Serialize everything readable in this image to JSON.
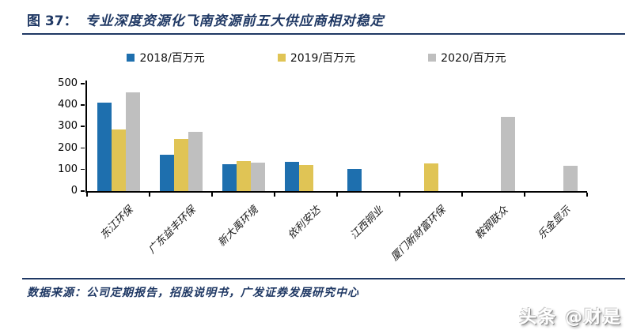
{
  "header": {
    "figure_label": "图 37：",
    "title": "专业深度资源化飞南资源前五大供应商相对稳定"
  },
  "chart_data": {
    "type": "bar",
    "title": "专业深度资源化飞南资源前五大供应商相对稳定",
    "categories": [
      "东江环保",
      "广东益丰环保",
      "新大禹环境",
      "依利安达",
      "江西铜业",
      "厦门新财富环保",
      "鞍钢联众",
      "乐金显示"
    ],
    "series": [
      {
        "name": "2018/百万元",
        "color": "#1e6fae",
        "values": [
          412,
          170,
          125,
          137,
          102,
          null,
          null,
          null
        ]
      },
      {
        "name": "2019/百万元",
        "color": "#e0c455",
        "values": [
          288,
          242,
          140,
          120,
          null,
          130,
          null,
          null
        ]
      },
      {
        "name": "2020/百万元",
        "color": "#bfbfbf",
        "values": [
          460,
          275,
          133,
          null,
          null,
          null,
          345,
          116
        ]
      }
    ],
    "xlabel": "",
    "ylabel": "",
    "ylim": [
      0,
      500
    ],
    "ytick_step": 100,
    "yticks": [
      0,
      100,
      200,
      300,
      400,
      500
    ],
    "grid": false,
    "legend_position": "top"
  },
  "footer": {
    "source": "数据来源：公司定期报告，招股说明书，广发证券发展研究中心",
    "watermark": "头条 @财是"
  },
  "colors": {
    "accent_navy": "#1f3864",
    "axis_black": "#000000",
    "bar_2018": "#1e6fae",
    "bar_2019": "#e0c455",
    "bar_2020": "#bfbfbf"
  }
}
